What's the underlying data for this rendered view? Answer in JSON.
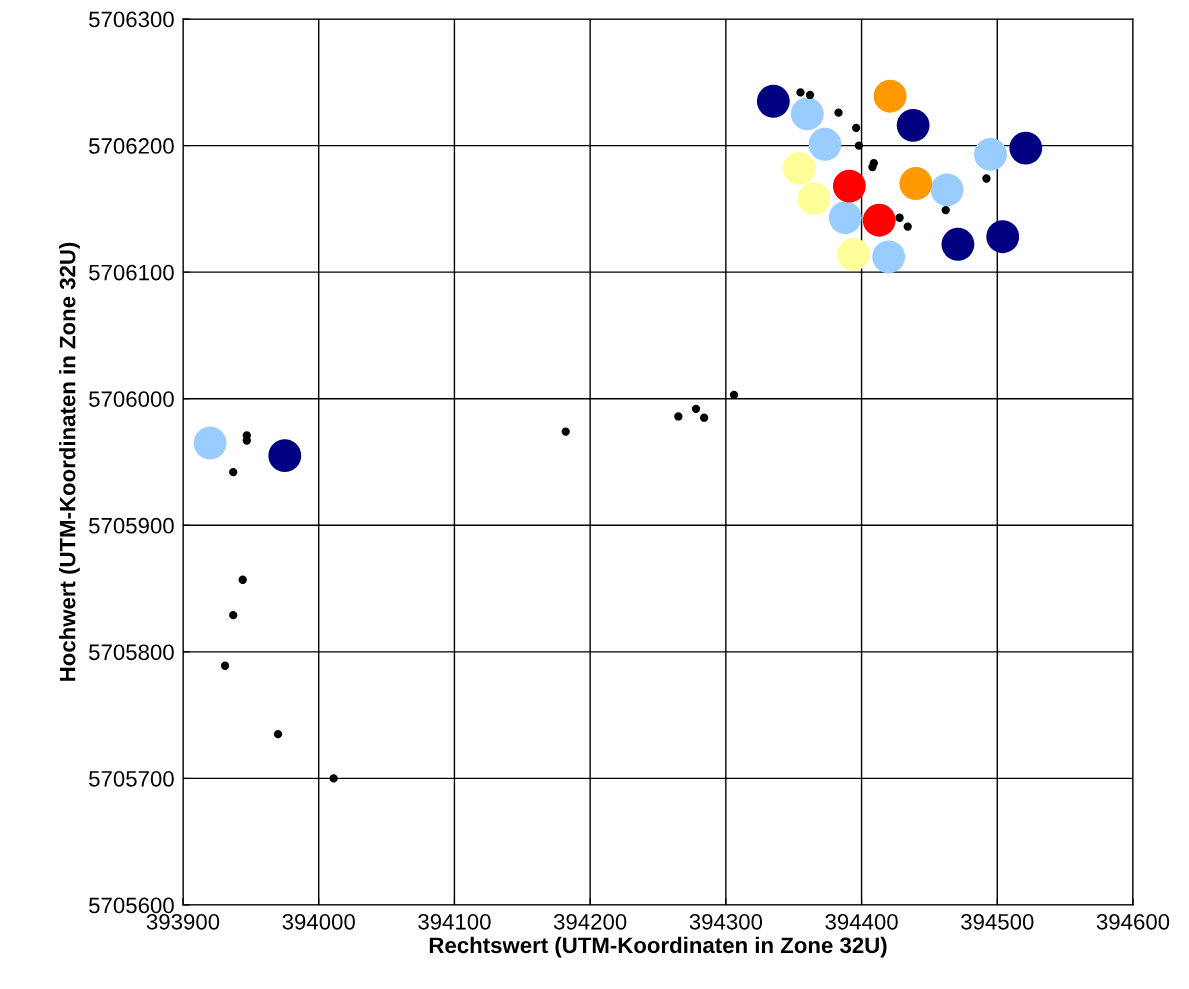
{
  "chart_data": {
    "type": "scatter",
    "xlabel": "Rechtswert (UTM-Koordinaten in Zone 32U)",
    "ylabel": "Hochwert (UTM-Koordinaten in Zone 32U)",
    "xlim": [
      393900,
      394600
    ],
    "xticks": [
      393900,
      394000,
      394100,
      394200,
      394300,
      394400,
      394500,
      394600
    ],
    "ylim": [
      5705600,
      5706300
    ],
    "yticks": [
      5705600,
      5705700,
      5705800,
      5705900,
      5706000,
      5706100,
      5706200,
      5706300
    ],
    "grid": true,
    "legend": false,
    "marker": "circle",
    "series": [
      {
        "color": "#000000",
        "x": [
          394355,
          394362,
          394383,
          394396,
          394398,
          394409,
          394408,
          394428,
          394434,
          394462,
          394492,
          393947,
          393947,
          393937,
          394182,
          394265,
          394278,
          394284,
          394306,
          393944,
          393937,
          393931,
          393970,
          394011
        ],
        "values": [
          5706242,
          5706240,
          5706226,
          5706214,
          5706200,
          5706186,
          5706183,
          5706143,
          5706136,
          5706149,
          5706174,
          5705971,
          5705967,
          5705942,
          5705974,
          5705986,
          5705992,
          5705985,
          5706003,
          5705857,
          5705829,
          5705789,
          5705735,
          5705700
        ]
      },
      {
        "color": "#000080",
        "x": [
          394335,
          394438,
          394521,
          394471,
          394504,
          393975
        ],
        "values": [
          5706235,
          5706216,
          5706198,
          5706122,
          5706128,
          5705955
        ]
      },
      {
        "color": "#99ccff",
        "x": [
          394360,
          394373,
          394388,
          394420,
          394463,
          394495,
          393920
        ],
        "values": [
          5706225,
          5706201,
          5706143,
          5706112,
          5706165,
          5706193,
          5705965
        ]
      },
      {
        "color": "#ffff99",
        "x": [
          394354,
          394365,
          394394
        ],
        "values": [
          5706182,
          5706158,
          5706114
        ]
      },
      {
        "color": "#ff9900",
        "x": [
          394421,
          394440
        ],
        "values": [
          5706239,
          5706170
        ]
      },
      {
        "color": "#ff0000",
        "x": [
          394391,
          394413
        ],
        "values": [
          5706168,
          5706141
        ]
      }
    ]
  }
}
